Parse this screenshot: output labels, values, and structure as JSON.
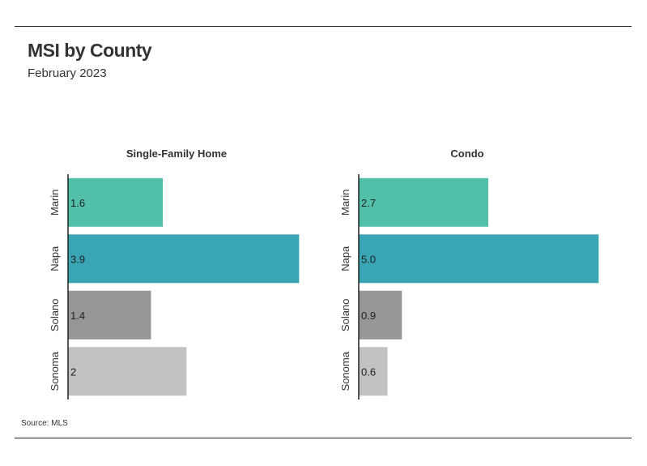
{
  "header": {
    "title": "MSI by County",
    "subtitle": "February 2023"
  },
  "footer": {
    "source": "Source: MLS"
  },
  "chart_data": [
    {
      "type": "bar",
      "orientation": "horizontal",
      "title": "Single-Family Home",
      "categories": [
        "Marin",
        "Napa",
        "Solano",
        "Sonoma"
      ],
      "values": [
        1.6,
        3.9,
        1.4,
        2.0
      ],
      "value_labels": [
        "1.6",
        "3.9",
        "1.4",
        "2"
      ],
      "xlim": [
        0,
        4.1
      ],
      "colors": [
        "#52bfa9",
        "#3aa6b5",
        "#969696",
        "#c2c2c2"
      ],
      "grid": false,
      "legend": "none"
    },
    {
      "type": "bar",
      "orientation": "horizontal",
      "title": "Condo",
      "categories": [
        "Marin",
        "Napa",
        "Solano",
        "Sonoma"
      ],
      "values": [
        2.7,
        5.0,
        0.9,
        0.6
      ],
      "value_labels": [
        "2.7",
        "5.0",
        "0.9",
        "0.6"
      ],
      "xlim": [
        0,
        5.4
      ],
      "colors": [
        "#52bfa9",
        "#3aa6b5",
        "#969696",
        "#c2c2c2"
      ],
      "grid": false,
      "legend": "none"
    }
  ]
}
